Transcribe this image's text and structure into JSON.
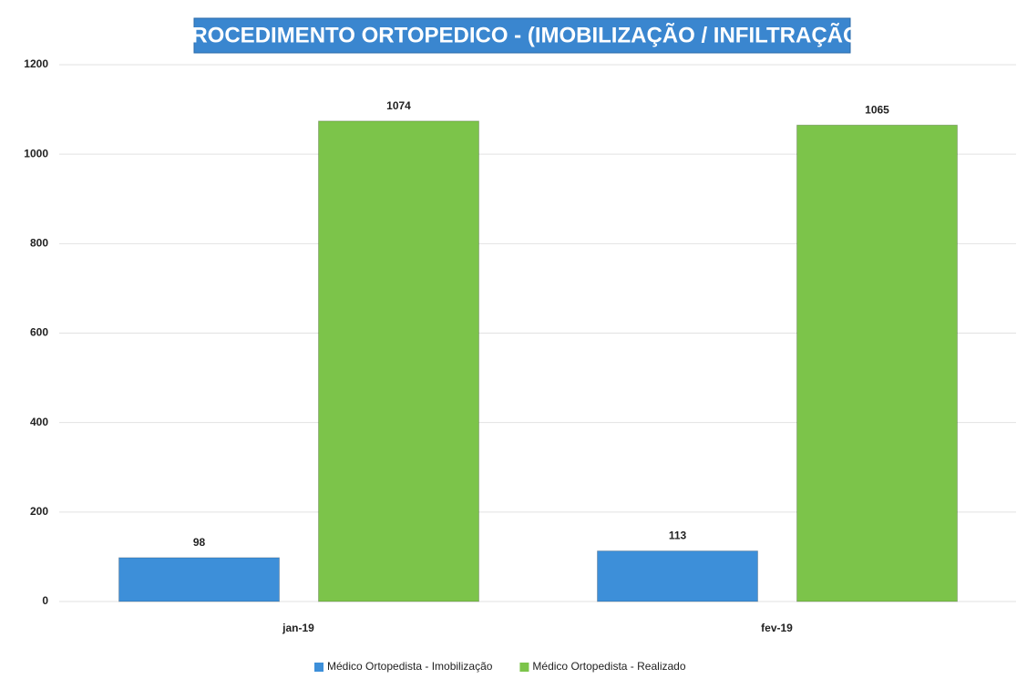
{
  "chart_data": {
    "type": "bar",
    "title": "PROCEDIMENTO ORTOPEDICO -  (IMOBILIZAÇÃO / INFILTRAÇÃO)",
    "categories": [
      "jan-19",
      "fev-19"
    ],
    "series": [
      {
        "name": "Médico Ortopedista - Imobilização",
        "color": "#3d8fd9",
        "values": [
          98,
          113
        ]
      },
      {
        "name": "Médico Ortopedista - Realizado",
        "color": "#7cc44a",
        "values": [
          1074,
          1065
        ]
      }
    ],
    "ylim": [
      0,
      1200
    ],
    "yticks": [
      0,
      200,
      400,
      600,
      800,
      1000,
      1200
    ],
    "grid": true,
    "legend": "bottom"
  }
}
